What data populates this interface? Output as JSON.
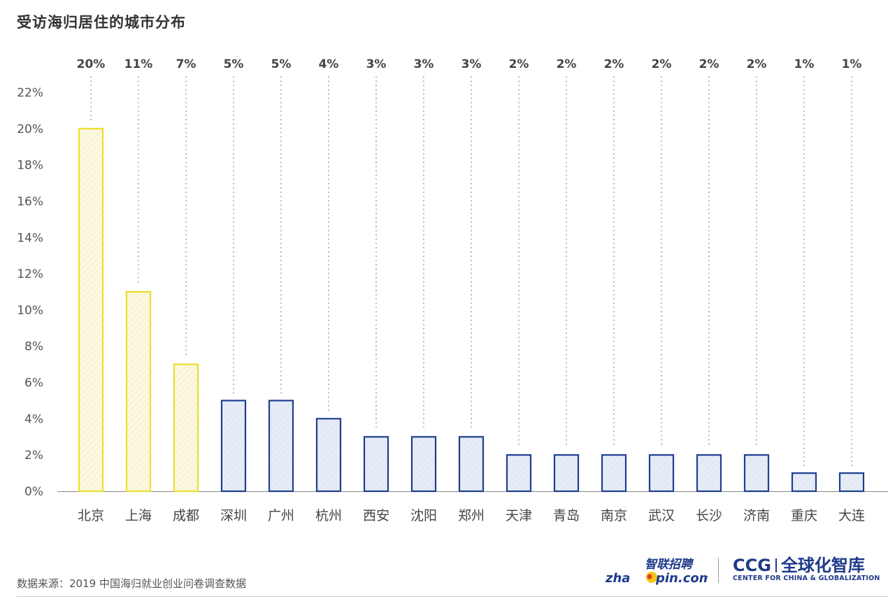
{
  "page_title": "受访海归居住的城市分布",
  "source_note": "数据来源：2019 中国海归就业创业问卷调查数据",
  "logos": {
    "zhaopin": {
      "cn": "智联招聘",
      "en_a": "zha",
      "en_b": "pin.com"
    },
    "ccg": {
      "abbr": "CCG",
      "cn": "全球化智库",
      "en": "CENTER FOR CHINA & GLOBALIZATION"
    }
  },
  "colors": {
    "highlight_stroke": "#ecde2c",
    "highlight_fill": "#fcf9e2",
    "normal_stroke": "#1e3f8f",
    "normal_fill": "#e7edf7",
    "axis": "#888888",
    "dots": "#aaaaaa"
  },
  "chart_data": {
    "type": "bar",
    "categories": [
      "北京",
      "上海",
      "成都",
      "深圳",
      "广州",
      "杭州",
      "西安",
      "沈阳",
      "郑州",
      "天津",
      "青岛",
      "南京",
      "武汉",
      "长沙",
      "济南",
      "重庆",
      "大连"
    ],
    "values": [
      20,
      11,
      7,
      5,
      5,
      4,
      3,
      3,
      3,
      2,
      2,
      2,
      2,
      2,
      2,
      1,
      1
    ],
    "value_labels": [
      "20%",
      "11%",
      "7%",
      "5%",
      "5%",
      "4%",
      "3%",
      "3%",
      "3%",
      "2%",
      "2%",
      "2%",
      "2%",
      "2%",
      "2%",
      "1%",
      "1%"
    ],
    "highlighted": [
      0,
      1,
      2
    ],
    "ylim": [
      0,
      22
    ],
    "yticks": [
      0,
      2,
      4,
      6,
      8,
      10,
      12,
      14,
      16,
      18,
      20,
      22
    ],
    "ytick_labels": [
      "0%",
      "2%",
      "4%",
      "6%",
      "8%",
      "10%",
      "12%",
      "14%",
      "16%",
      "18%",
      "20%",
      "22%"
    ],
    "xlabel": "",
    "ylabel": "",
    "grid": false
  }
}
